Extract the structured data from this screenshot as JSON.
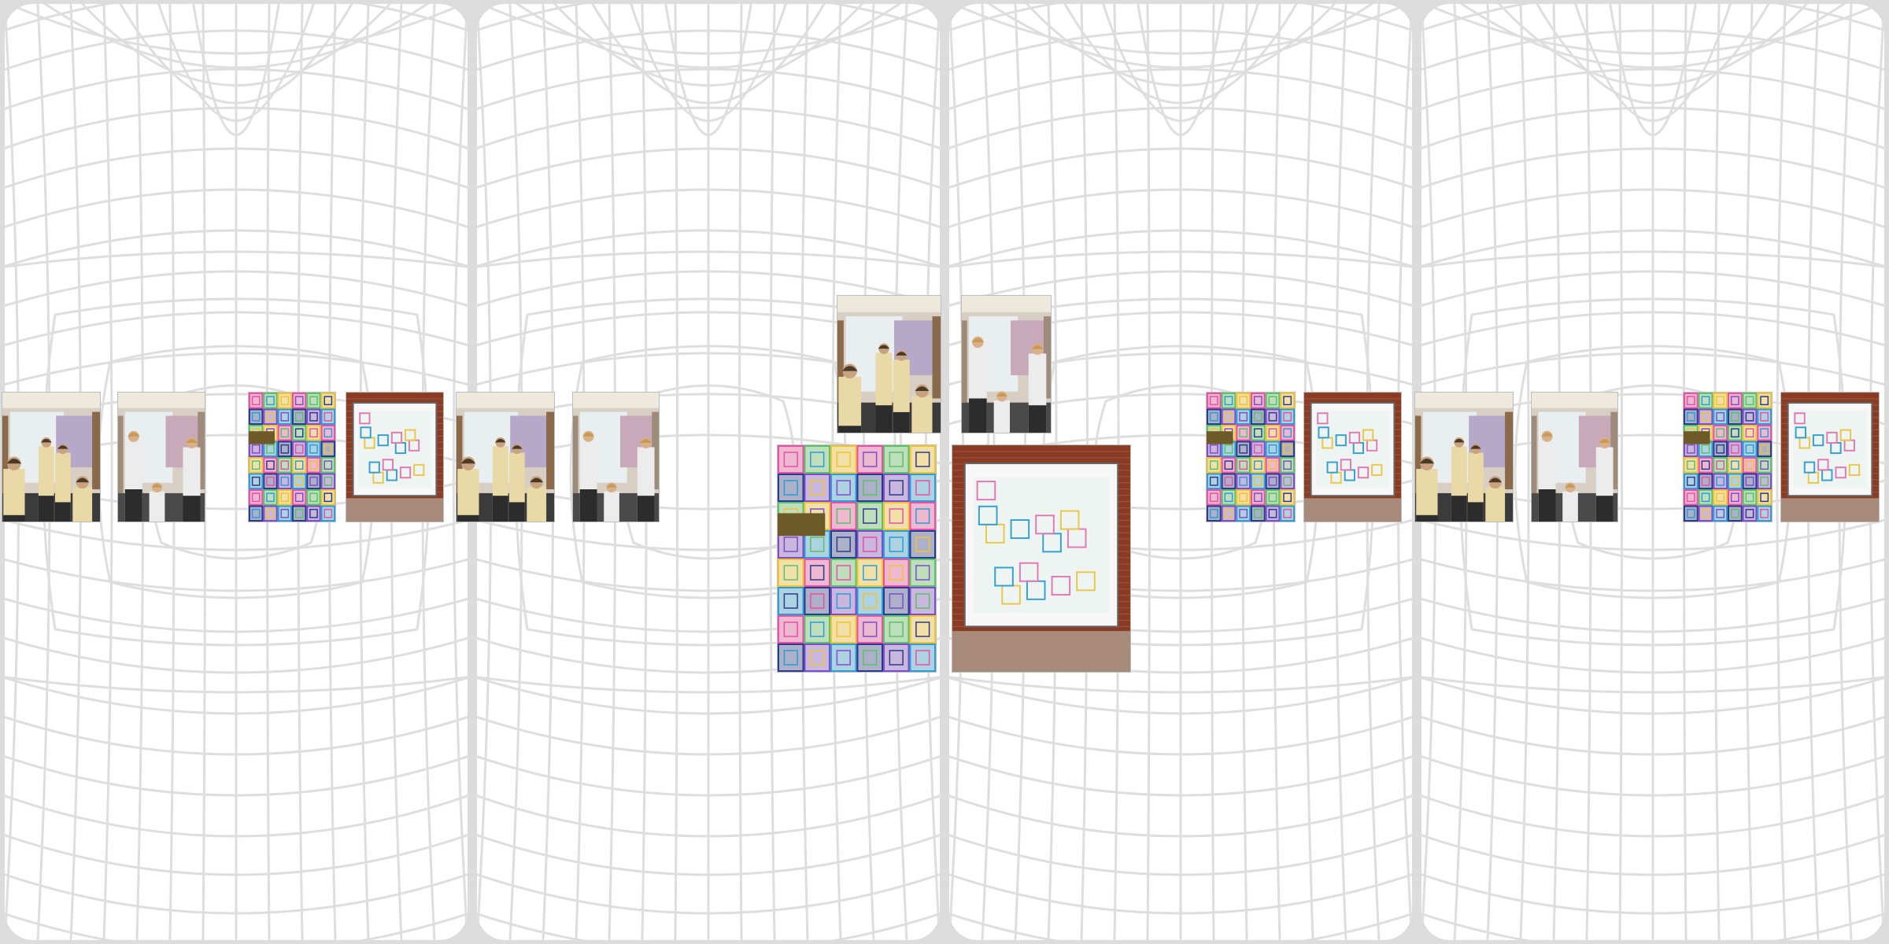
{
  "view": {
    "panel_count": 4,
    "background_color": "#dcdcdc",
    "panel_color": "#ffffff",
    "grid_color": "#dedede"
  },
  "photo_types": {
    "people_a": {
      "name": "people-gallery-photo-a",
      "colors": {
        "wall": "#8a6a4a",
        "floor": "#3b3b3b",
        "skin": "#c9a27e",
        "shirt": "#e8d9a6",
        "hair": "#4a3a28",
        "art": "#b6a8c8"
      }
    },
    "people_b": {
      "name": "people-gallery-photo-b",
      "colors": {
        "wall": "#9e8b7a",
        "floor": "#4a4a4a",
        "skin": "#d8b08c",
        "shirt": "#ececec",
        "hair": "#c89a52",
        "art": "#c7a9b9"
      }
    },
    "artwork_closeup": {
      "name": "artwork-closeup-photo",
      "colors": {
        "base": "#f2f0e8",
        "c1": "#e84fa6",
        "c2": "#2e9bd6",
        "c3": "#f1c232",
        "c4": "#7d4cc9",
        "c5": "#5bc06a",
        "c6": "#2a3a8c"
      }
    },
    "artwork_wall": {
      "name": "artwork-wall-photo",
      "colors": {
        "brick": "#8a3b24",
        "frame": "#f7f7f7",
        "floor": "#a88a7a",
        "art": "#e27ab3",
        "art2": "#36a0d0",
        "art3": "#e8c84a"
      }
    }
  },
  "photo_rows": [
    {
      "id": "row-left",
      "items": [
        "people_a",
        "people_b",
        "artwork_closeup",
        "artwork_wall",
        "people_a",
        "people_b"
      ]
    },
    {
      "id": "row-center-top",
      "items": [
        "people_a",
        "people_b"
      ]
    },
    {
      "id": "row-center-bottom",
      "items": [
        "artwork_closeup",
        "artwork_wall"
      ]
    },
    {
      "id": "row-right",
      "items": [
        "artwork_closeup",
        "artwork_wall",
        "people_a",
        "people_b",
        "artwork_closeup",
        "artwork_wall"
      ]
    }
  ]
}
